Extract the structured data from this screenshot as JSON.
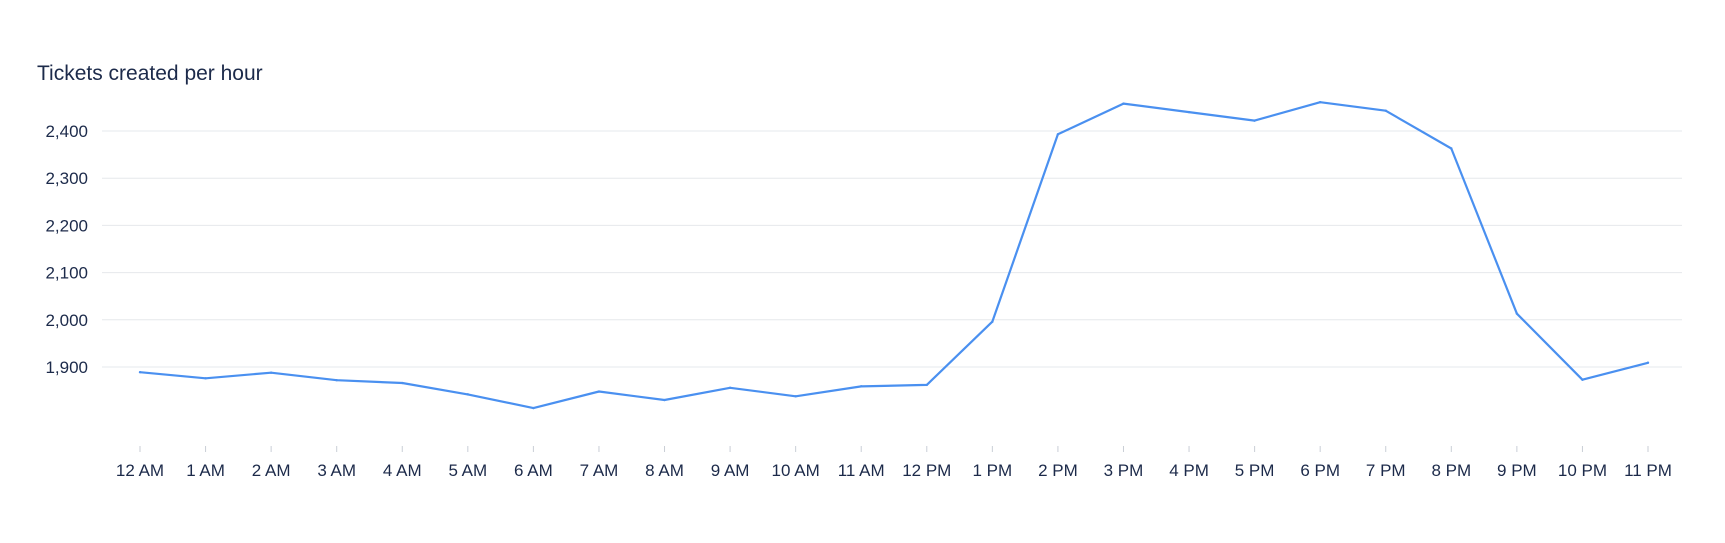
{
  "chart_data": {
    "type": "line",
    "title": "Tickets created per hour",
    "xlabel": "",
    "ylabel": "",
    "categories": [
      "12 AM",
      "1 AM",
      "2 AM",
      "3 AM",
      "4 AM",
      "5 AM",
      "6 AM",
      "7 AM",
      "8 AM",
      "9 AM",
      "10 AM",
      "11 AM",
      "12 PM",
      "1 PM",
      "2 PM",
      "3 PM",
      "4 PM",
      "5 PM",
      "6 PM",
      "7 PM",
      "8 PM",
      "9 PM",
      "10 PM",
      "11 PM"
    ],
    "series": [
      {
        "values": [
          1889,
          1876,
          1888,
          1872,
          1866,
          1842,
          1813,
          1848,
          1830,
          1856,
          1838,
          1859,
          1862,
          1996,
          2393,
          2458,
          2440,
          2422,
          2461,
          2443,
          2363,
          2013,
          1873,
          1909
        ],
        "color": "#4a90f0"
      }
    ],
    "ylim": [
      1800,
      2460
    ],
    "yticks": [
      1900,
      2000,
      2100,
      2200,
      2300,
      2400
    ],
    "ytick_labels": [
      "1,900",
      "2,000",
      "2,100",
      "2,200",
      "2,300",
      "2,400"
    ],
    "grid": true,
    "legend": "none"
  }
}
